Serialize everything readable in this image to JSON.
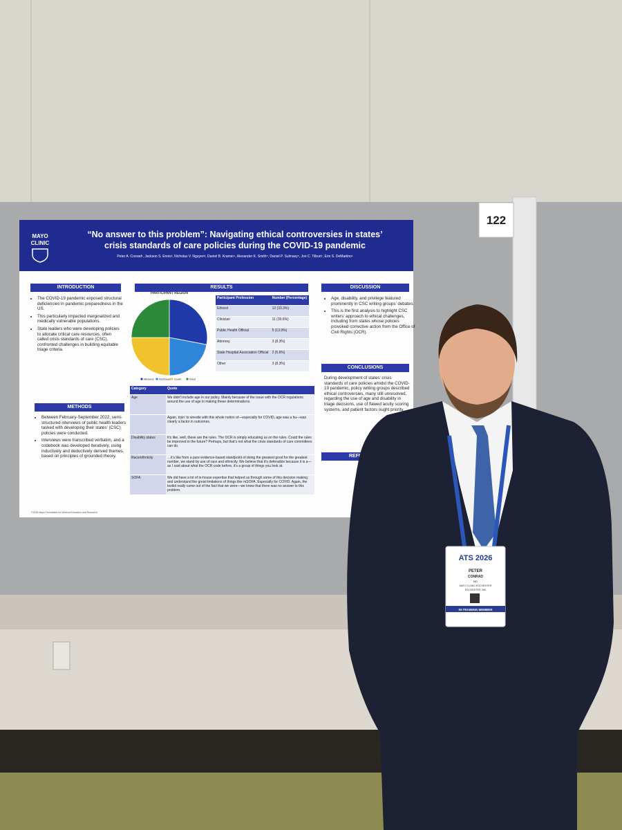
{
  "board_number": "122",
  "poster": {
    "logo": [
      "MAYO",
      "CLINIC"
    ],
    "title": [
      "“No answer to this problem”: Navigating ethical controversies in states’",
      "crisis standards of care policies during the COVID-19 pandemic"
    ],
    "authors": "Peter A. Conrad¹, Jackson S. Ennis², Nicholas V. Nguyen³, Daniel B. Kramer⁴, Alexander K. Smith⁵, Daniel P. Sulmasy⁶, Jon C. Tilburt⁷, Erin S. DeMartino¹",
    "introduction": {
      "heading": "INTRODUCTION",
      "bullets": [
        "The COVID-19 pandemic exposed structural deficiencies in pandemic preparedness in the US.",
        "This particularly impacted marginalized and medically vulnerable populations.",
        "State leaders who were developing policies to allocate critical care resources, often called crisis standards of care (CSC), confronted challenges in building equitable triage criteria."
      ]
    },
    "methods": {
      "heading": "METHODS",
      "bullets": [
        "Between February-September 2022, semi-structured interviews of public health leaders tasked with developing their states’ (CSC) policies were conducted.",
        "Interviews were transcribed verbatim, and a codebook was developed iteratively, using inductively and deductively derived themes, based on principles of grounded theory."
      ]
    },
    "results": {
      "heading": "RESULTS",
      "profession_table": {
        "header": [
          "Participant Profession",
          "Number (Percentage)"
        ],
        "rows": [
          [
            "Ethicist",
            "12 (33.3%)"
          ],
          [
            "Clinician",
            "11 (30.6%)"
          ],
          [
            "Public Health Official",
            "5 (13.9%)"
          ],
          [
            "Attorney",
            "3 (8.3%)"
          ],
          [
            "State Hospital Association Official",
            "2 (5.6%)"
          ],
          [
            "Other",
            "3 (8.3%)"
          ]
        ]
      },
      "quote_table": {
        "header": [
          "Category",
          "Quote"
        ],
        "rows": [
          [
            "Age",
            "We didn’t include age in our policy. Mainly because of the issue with the OCR regulations around the use of age in making these determinations."
          ],
          [
            "",
            "Again, tryin’ to wrestle with this whole notion of—especially for COVID, age was a hu—was clearly a factor in outcomes."
          ],
          [
            "Disability status",
            "It’s like, well, these are the rules. The OCR is simply educating us on the rules. Could the rules be improved in the future? Perhaps, but that’s not what the crisis standards of care committees can do."
          ],
          [
            "Race/ethnicity",
            "…it’s like from a pure evidence-based standpoint of doing the greatest good for the greatest number, we stand by use of race and ethnicity. We believe that it’s defensible because it is a—as I said about what the OCR code before, it’s a group of things you look at."
          ],
          [
            "SOFA",
            "We did have a lot of in-house expertise that helped us through some of this decision making and understand the great limitations of things like mSOFA. Especially for COVID. Again, the toolkit really came out of the fact that we were—we knew that there was no answer to this problem."
          ]
        ]
      }
    },
    "discussion": {
      "heading": "DISCUSSION",
      "bullets": [
        "Age, disability, and privilege featured prominently in CSC writing groups’ debates.",
        "This is the first analysis to highlight CSC writers’ approach to ethical challenges, including from states whose policies provoked corrective action from the Office of Civil Rights (OCR)."
      ]
    },
    "conclusions": {
      "heading": "CONCLUSIONS",
      "text": "During development of states’ crisis standards of care policies amidst the COVID-19 pandemic, policy writing groups described ethical controversies, many still unresolved, regarding the use of age and disability in triage decisions, use of flawed acuity scoring systems, and patient factors ought priority."
    },
    "references_heading": "REFE",
    "footer": "©2026 Mayo Foundation for Medical Education and Research"
  },
  "chart_data": {
    "type": "pie",
    "title": "PARTICIPANT REGION",
    "categories": [
      "Midwest",
      "Northeast",
      "South",
      "West"
    ],
    "values": [
      28,
      22,
      25,
      25
    ],
    "colors": [
      "#1f3aa8",
      "#2f86d8",
      "#f0c22c",
      "#2a8a3a"
    ]
  },
  "badge": {
    "brand": "ATS 2026",
    "first_name": "PETER",
    "last_name": "CONRAD",
    "degree": "MD",
    "institution": "MAYO CLINIC-ROCHESTER",
    "location": "ROCHESTER, MN",
    "membership": "IN-TRAINING MEMBER"
  }
}
